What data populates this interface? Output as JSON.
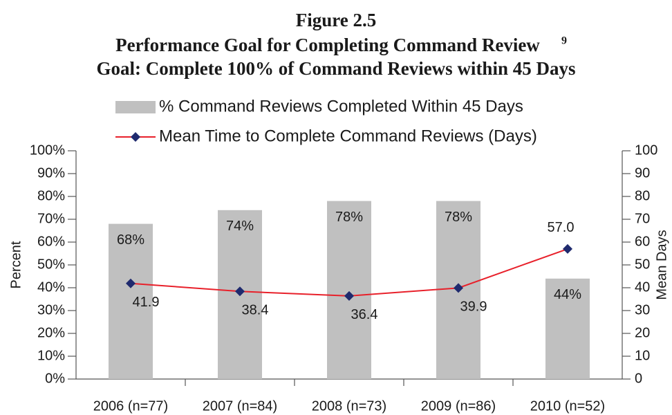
{
  "chart_data": {
    "type": "combo",
    "figure": "Figure 2.5",
    "title": "Performance Goal for Completing Command Review",
    "title_footnote": "9",
    "subtitle": "Goal: Complete 100% of Command Reviews within 45 Days",
    "categories": [
      "2006 (n=77)",
      "2007 (n=84)",
      "2008 (n=73)",
      "2009 (n=86)",
      "2010 (n=52)"
    ],
    "series": [
      {
        "name": "% Command Reviews Completed Within 45 Days",
        "type": "bar",
        "color": "#c0c0c0",
        "values": [
          68,
          74,
          78,
          78,
          44
        ],
        "value_labels": [
          "68%",
          "74%",
          "78%",
          "78%",
          "44%"
        ]
      },
      {
        "name": "Mean Time to Complete Command Reviews (Days)",
        "type": "line",
        "color": "#e8202a",
        "marker_color": "#1f2a6e",
        "axis": "y2",
        "values": [
          41.9,
          38.4,
          36.4,
          39.9,
          57.0
        ],
        "value_labels": [
          "41.9",
          "38.4",
          "36.4",
          "39.9",
          "57.0"
        ]
      }
    ],
    "ylabel": "Percent",
    "y2label": "Mean  Days",
    "ylim": [
      0,
      100
    ],
    "yticks": [
      {
        "value": 0,
        "label": "0%"
      },
      {
        "value": 10,
        "label": "10%"
      },
      {
        "value": 20,
        "label": "20%"
      },
      {
        "value": 30,
        "label": "30%"
      },
      {
        "value": 40,
        "label": "40%"
      },
      {
        "value": 50,
        "label": "50%"
      },
      {
        "value": 60,
        "label": "60%"
      },
      {
        "value": 70,
        "label": "70%"
      },
      {
        "value": 80,
        "label": "80%"
      },
      {
        "value": 90,
        "label": "90%"
      },
      {
        "value": 100,
        "label": "100%"
      }
    ],
    "y2lim": [
      0,
      100
    ],
    "y2ticks": [
      0,
      10,
      20,
      30,
      40,
      50,
      60,
      70,
      80,
      90,
      100
    ]
  }
}
